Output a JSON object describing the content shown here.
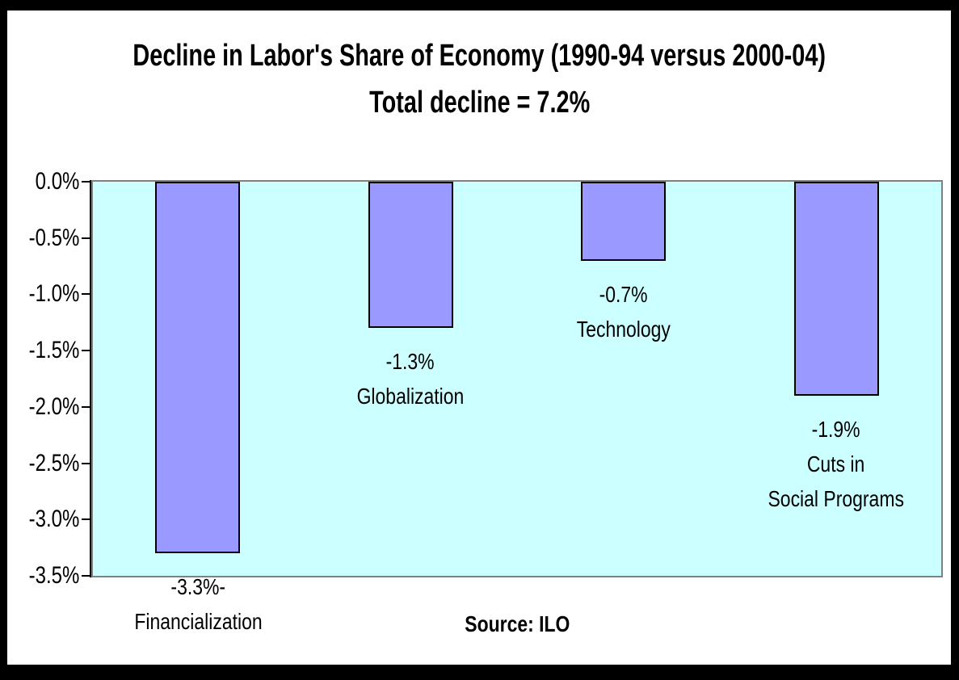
{
  "title": {
    "line1": "Decline in Labor's Share of Economy (1990-94 versus 2000-04)",
    "line2": "Total decline = 7.2%"
  },
  "source_label": "Source: ILO",
  "colors": {
    "page_background": "#FFFFFF",
    "page_frame": "#000000",
    "plot_background": "#CCFFFF",
    "plot_border": "#808080",
    "bar_fill": "#9999FF",
    "bar_border": "#000000",
    "axis": "#000000",
    "text": "#000000"
  },
  "chart_data": {
    "type": "bar",
    "title": "Decline in Labor's Share of Economy (1990-94 versus 2000-04)",
    "subtitle": "Total decline = 7.2%",
    "categories": [
      "Financialization",
      "Globalization",
      "Technology",
      "Cuts in Social Programs"
    ],
    "values": [
      -3.3,
      -1.3,
      -0.7,
      -1.9
    ],
    "value_labels": [
      "-3.3%-",
      "-1.3%",
      "-0.7%",
      "-1.9%"
    ],
    "category_label_lines": [
      [
        "Financialization"
      ],
      [
        "Globalization"
      ],
      [
        "Technology"
      ],
      [
        "Cuts in",
        "Social Programs"
      ]
    ],
    "total_decline_pct": 7.2,
    "xlabel": "",
    "ylabel": "",
    "ylim": [
      -3.5,
      0
    ],
    "y_tick_labels": [
      "0.0%",
      "-0.5%",
      "-1.0%",
      "-1.5%",
      "-2.0%",
      "-2.5%",
      "-3.0%",
      "-3.5%"
    ],
    "y_tick_values": [
      0,
      -0.5,
      -1.0,
      -1.5,
      -2.0,
      -2.5,
      -3.0,
      -3.5
    ],
    "grid": false,
    "legend": false,
    "bar_orientation": "vertical-negative",
    "source": "Source: ILO"
  }
}
